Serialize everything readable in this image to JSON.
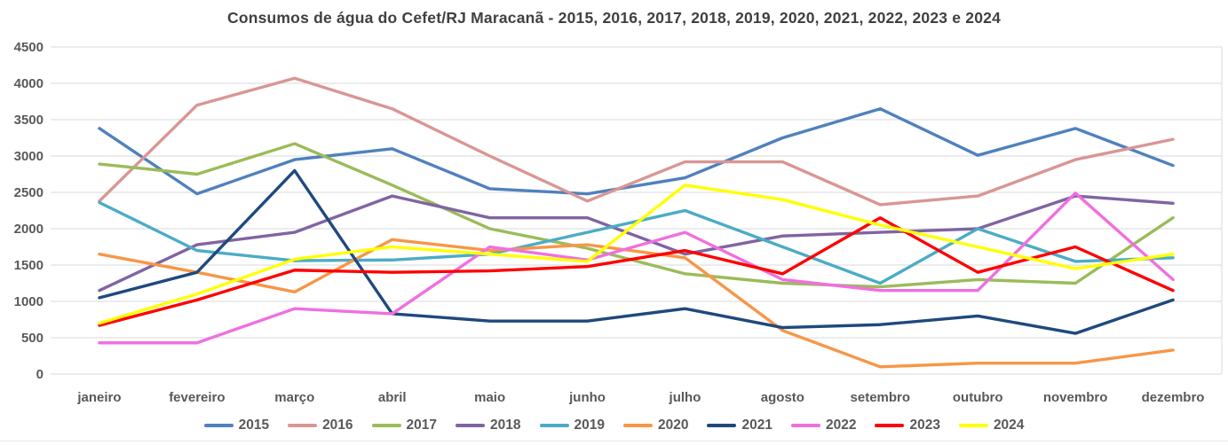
{
  "title": "Consumos de água do Cefet/RJ Maracanã - 2015, 2016, 2017, 2018, 2019, 2020, 2021, 2022, 2023 e 2024",
  "chart_data": {
    "type": "line",
    "title": "Consumos de água do Cefet/RJ Maracanã - 2015, 2016, 2017, 2018, 2019, 2020, 2021, 2022, 2023 e 2024",
    "xlabel": "",
    "ylabel": "",
    "grid": true,
    "legend_position": "bottom",
    "ylim": [
      0,
      4500
    ],
    "y_ticks": [
      0,
      500,
      1000,
      1500,
      2000,
      2500,
      3000,
      3500,
      4000,
      4500
    ],
    "categories": [
      "janeiro",
      "fevereiro",
      "março",
      "abril",
      "maio",
      "junho",
      "julho",
      "agosto",
      "setembro",
      "outubro",
      "novembro",
      "dezembro"
    ],
    "series": [
      {
        "name": "2015",
        "color": "#4F81BD",
        "values": [
          3380,
          2480,
          2950,
          3100,
          2550,
          2480,
          2700,
          3250,
          3650,
          3010,
          3380,
          2870
        ]
      },
      {
        "name": "2016",
        "color": "#D99694",
        "values": [
          2380,
          3700,
          4070,
          3650,
          3000,
          2380,
          2920,
          2920,
          2330,
          2450,
          2950,
          3230
        ]
      },
      {
        "name": "2017",
        "color": "#9BBB59",
        "values": [
          2890,
          2750,
          3170,
          2600,
          2000,
          1730,
          1380,
          1250,
          1200,
          1300,
          1250,
          2150
        ]
      },
      {
        "name": "2018",
        "color": "#8064A2",
        "values": [
          1150,
          1780,
          1950,
          2450,
          2150,
          2150,
          1650,
          1900,
          1950,
          2000,
          2450,
          2350
        ]
      },
      {
        "name": "2019",
        "color": "#4BACC6",
        "values": [
          2360,
          1700,
          1560,
          1570,
          1650,
          1950,
          2250,
          1750,
          1250,
          2000,
          1550,
          1600
        ]
      },
      {
        "name": "2020",
        "color": "#F79646",
        "values": [
          1650,
          1400,
          1130,
          1850,
          1700,
          1780,
          1600,
          600,
          100,
          150,
          150,
          330
        ]
      },
      {
        "name": "2021",
        "color": "#1F497D",
        "values": [
          1050,
          1400,
          2800,
          830,
          730,
          730,
          900,
          640,
          680,
          800,
          560,
          1020
        ]
      },
      {
        "name": "2022",
        "color": "#F06FE0",
        "values": [
          430,
          430,
          900,
          830,
          1750,
          1570,
          1950,
          1300,
          1150,
          1150,
          2490,
          1300
        ]
      },
      {
        "name": "2023",
        "color": "#FF0000",
        "values": [
          670,
          1020,
          1430,
          1400,
          1420,
          1480,
          1700,
          1380,
          2150,
          1400,
          1750,
          1150
        ]
      },
      {
        "name": "2024",
        "color": "#FFFF00",
        "values": [
          700,
          1100,
          1580,
          1750,
          1650,
          1550,
          2600,
          2400,
          2050,
          1750,
          1450,
          1650
        ]
      }
    ]
  }
}
